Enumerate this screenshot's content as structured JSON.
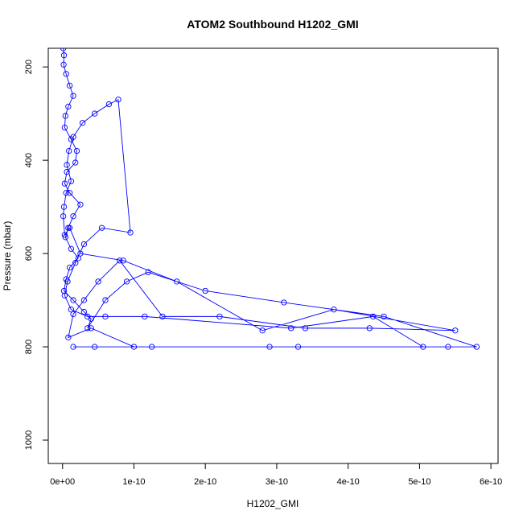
{
  "chart_data": {
    "type": "scatter",
    "title": "ATOM2 Southbound H1202_GMI",
    "xlabel": "H1202_GMI",
    "ylabel": "Pressure (mbar)",
    "xlim": [
      -2e-11,
      6.1e-10
    ],
    "ylim": [
      1050,
      160
    ],
    "y_reversed": true,
    "x_ticks": [
      {
        "value": 0,
        "label": "0e+00"
      },
      {
        "value": 1e-10,
        "label": "1e-10"
      },
      {
        "value": 2e-10,
        "label": "2e-10"
      },
      {
        "value": 3e-10,
        "label": "3e-10"
      },
      {
        "value": 4e-10,
        "label": "4e-10"
      },
      {
        "value": 5e-10,
        "label": "5e-10"
      },
      {
        "value": 6e-10,
        "label": "6e-10"
      }
    ],
    "y_ticks": [
      {
        "value": 200,
        "label": "200"
      },
      {
        "value": 400,
        "label": "400"
      },
      {
        "value": 600,
        "label": "600"
      },
      {
        "value": 800,
        "label": "800"
      },
      {
        "value": 1000,
        "label": "1000"
      }
    ],
    "series_color": "#0000ff",
    "marker": "open-circle",
    "connected": true,
    "x": [
      1e-12,
      2e-12,
      1.5e-12,
      5e-12,
      1e-11,
      1.5e-11,
      8e-12,
      4e-12,
      3e-12,
      1.2e-11,
      2e-11,
      1.8e-11,
      6e-12,
      3e-12,
      1e-11,
      2.5e-11,
      1.5e-11,
      8e-12,
      4e-12,
      1.2e-11,
      2.2e-11,
      1e-11,
      5e-12,
      2e-12,
      1.5e-11,
      3e-11,
      4e-11,
      3.5e-11,
      6e-11,
      9e-11,
      1.2e-10,
      2e-10,
      3.1e-10,
      4.5e-10,
      5.8e-10,
      5.4e-10,
      2.9e-10,
      1e-10,
      4e-11,
      8e-12,
      1.5e-11,
      3e-11,
      5e-11,
      8e-11,
      1.4e-10,
      2.2e-10,
      3.4e-10,
      4.3e-10,
      5.5e-10,
      3.8e-10,
      2.8e-10,
      1.6e-10,
      8.5e-11,
      2.5e-11,
      1e-11,
      3e-12,
      1e-12,
      2e-12,
      5e-12,
      1.2e-11,
      6e-12,
      9e-12,
      1.5e-11,
      2.8e-11,
      4.5e-11,
      6.5e-11,
      7.8e-11,
      9.5e-11,
      5.5e-11,
      3e-11,
      1.8e-11,
      7e-12,
      3e-12,
      1.2e-11,
      3.5e-11,
      6e-11,
      1.15e-10,
      3.2e-10,
      4.35e-10,
      5.05e-10,
      3.3e-10,
      1.25e-10,
      4.5e-11,
      1.5e-11
    ],
    "y": [
      160,
      175,
      195,
      215,
      240,
      262,
      285,
      305,
      330,
      355,
      380,
      405,
      425,
      450,
      470,
      495,
      520,
      545,
      565,
      590,
      610,
      630,
      655,
      680,
      700,
      725,
      740,
      760,
      700,
      660,
      640,
      680,
      705,
      735,
      800,
      800,
      800,
      800,
      760,
      780,
      730,
      700,
      660,
      615,
      735,
      735,
      760,
      760,
      765,
      720,
      765,
      660,
      615,
      600,
      545,
      560,
      520,
      500,
      470,
      445,
      410,
      380,
      350,
      320,
      300,
      280,
      270,
      555,
      545,
      580,
      620,
      660,
      690,
      720,
      735,
      735,
      735,
      760,
      735,
      800,
      800,
      800,
      800,
      800
    ]
  }
}
